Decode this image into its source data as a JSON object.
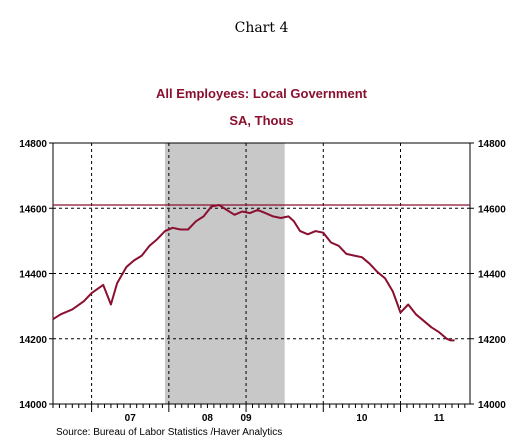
{
  "chart_data": {
    "type": "line",
    "chart_number": "Chart 4",
    "title": "All Employees: Local Government",
    "subtitle": "SA, Thous",
    "source": "Source:  Bureau of Labor Statistics /Haver Analytics",
    "ylim": [
      14000,
      14800
    ],
    "yticks": [
      14000,
      14200,
      14400,
      14600,
      14800
    ],
    "ytick_labels": [
      "14000",
      "14200",
      "14400",
      "14600",
      "14800"
    ],
    "xlim": [
      2006.5,
      2011.9
    ],
    "year_boundaries": [
      2007,
      2008,
      2009,
      2010,
      2011
    ],
    "year_labels": [
      {
        "label": "07",
        "year": 2007.5
      },
      {
        "label": "08",
        "year": 2008.5
      },
      {
        "label": "09",
        "year": 2009.0
      },
      {
        "label": "10",
        "year": 2010.5
      },
      {
        "label": "11",
        "year": 2011.5
      }
    ],
    "recession_shade": [
      2007.95,
      2009.5
    ],
    "reference_line": 14610,
    "grid": true,
    "colors": {
      "line": "#8b1030",
      "shade": "#c8c8c8",
      "title": "#8b1030"
    },
    "series": [
      {
        "x": [
          2006.5,
          2006.6,
          2006.75,
          2006.9,
          2007.0,
          2007.15,
          2007.25,
          2007.33,
          2007.45,
          2007.55,
          2007.65,
          2007.75,
          2007.85,
          2007.95,
          2008.05,
          2008.15,
          2008.25,
          2008.35,
          2008.45,
          2008.55,
          2008.65,
          2008.75,
          2008.85,
          2008.95,
          2009.05,
          2009.15,
          2009.25,
          2009.35,
          2009.45,
          2009.55,
          2009.62,
          2009.7,
          2009.8,
          2009.9,
          2010.0,
          2010.1,
          2010.2,
          2010.3,
          2010.4,
          2010.5,
          2010.6,
          2010.7,
          2010.8,
          2010.9,
          2011.0,
          2011.1,
          2011.2,
          2011.3,
          2011.4,
          2011.5,
          2011.6,
          2011.65,
          2011.7
        ],
        "values": [
          14260,
          14275,
          14290,
          14315,
          14340,
          14365,
          14305,
          14370,
          14420,
          14440,
          14455,
          14485,
          14505,
          14530,
          14540,
          14535,
          14535,
          14560,
          14575,
          14605,
          14610,
          14595,
          14580,
          14590,
          14585,
          14595,
          14585,
          14575,
          14570,
          14575,
          14560,
          14530,
          14520,
          14530,
          14525,
          14495,
          14485,
          14460,
          14455,
          14450,
          14430,
          14405,
          14385,
          14345,
          14280,
          14305,
          14275,
          14255,
          14235,
          14220,
          14200,
          14195,
          14195
        ]
      }
    ]
  }
}
